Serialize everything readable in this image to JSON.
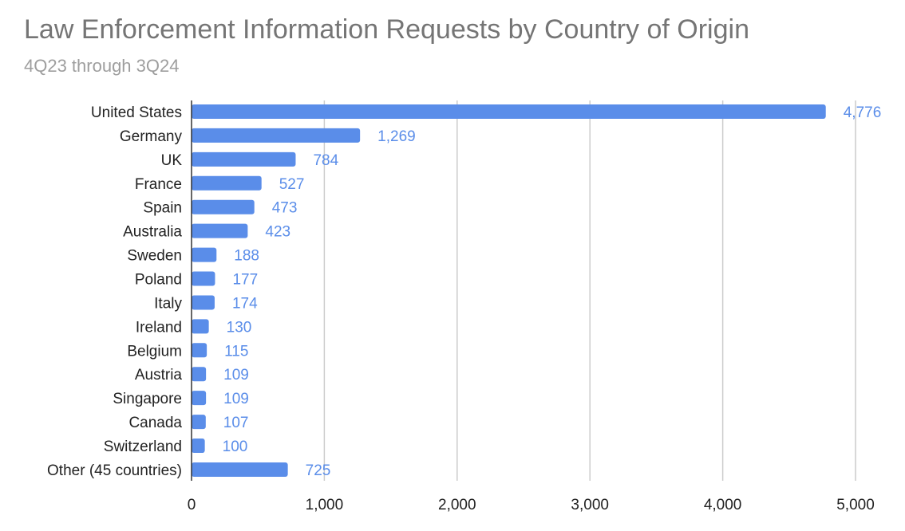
{
  "chart_data": {
    "type": "bar",
    "orientation": "horizontal",
    "title": "Law Enforcement Information Requests by Country of Origin",
    "subtitle": "4Q23 through 3Q24",
    "categories": [
      "United States",
      "Germany",
      "UK",
      "France",
      "Spain",
      "Australia",
      "Sweden",
      "Poland",
      "Italy",
      "Ireland",
      "Belgium",
      "Austria",
      "Singapore",
      "Canada",
      "Switzerland",
      "Other (45 countries)"
    ],
    "values": [
      4776,
      1269,
      784,
      527,
      473,
      423,
      188,
      177,
      174,
      130,
      115,
      109,
      109,
      107,
      100,
      725
    ],
    "data_labels": [
      "4,776",
      "1,269",
      "784",
      "527",
      "473",
      "423",
      "188",
      "177",
      "174",
      "130",
      "115",
      "109",
      "109",
      "107",
      "100",
      "725"
    ],
    "xlim": [
      0,
      5000
    ],
    "xticks": [
      0,
      1000,
      2000,
      3000,
      4000,
      5000
    ],
    "xtick_labels": [
      "0",
      "1,000",
      "2,000",
      "3,000",
      "4,000",
      "5,000"
    ],
    "xlabel": "",
    "ylabel": "",
    "grid": "vertical",
    "legend": "none",
    "bar_color": "#5a8de9",
    "label_color": "#5a8de9",
    "grid_color": "#cccccc",
    "axis_color": "#333333"
  }
}
